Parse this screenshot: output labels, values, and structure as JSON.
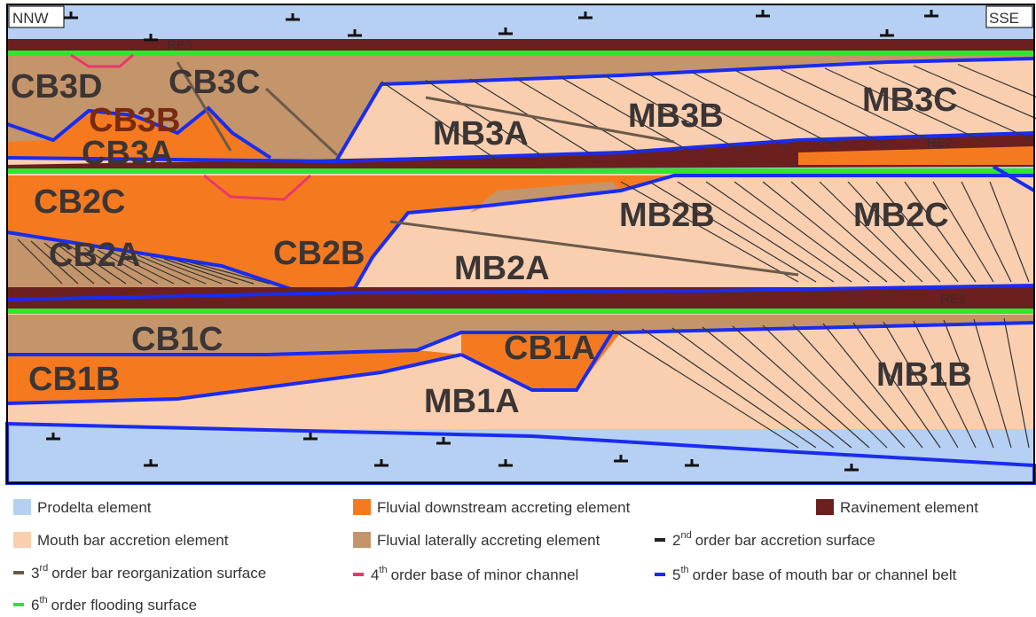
{
  "header": {
    "left": "NNW",
    "right": "SSE"
  },
  "surfaces": [
    "RE3",
    "RE2",
    "RE1"
  ],
  "elements": [
    "CB3D",
    "CB3C",
    "CB3B",
    "CB3A",
    "MB3A",
    "MB3B",
    "MB3C",
    "CB2C",
    "CB2A",
    "CB2B",
    "MB2B",
    "MB2C",
    "MB2A",
    "CB1C",
    "CB1A",
    "CB1B",
    "MB1A",
    "MB1B"
  ],
  "legend": [
    {
      "label": "Prodelta element"
    },
    {
      "label": "Fluvial downstream accreting element"
    },
    {
      "label": "Ravinement element"
    },
    {
      "label": "Mouth bar accretion element"
    },
    {
      "label": "Fluvial laterally accreting element"
    },
    {
      "num": "2",
      "sup": "nd",
      "label": "order bar accretion surface"
    },
    {
      "num": "3",
      "sup": "rd",
      "label": "order bar reorganization surface"
    },
    {
      "num": "4",
      "sup": "th",
      "label": "order base of minor channel"
    },
    {
      "num": "5",
      "sup": "th",
      "label": "order base of mouth bar or channel belt"
    },
    {
      "num": "6",
      "sup": "th",
      "label": "order flooding surface"
    }
  ]
}
